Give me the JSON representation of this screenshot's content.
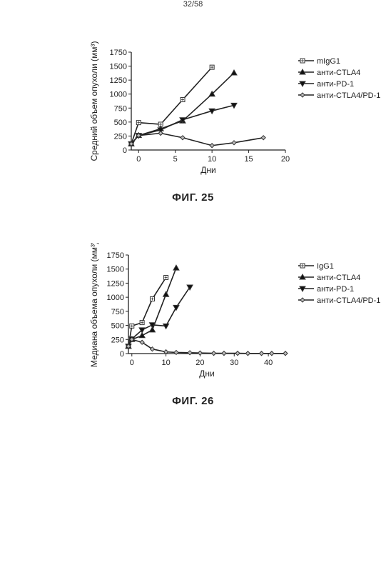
{
  "page": {
    "number": "32/58"
  },
  "chart_data": [
    {
      "type": "line",
      "caption": "ФИГ. 25",
      "xlabel": "Дни",
      "ylabel": "Средний объем опухоли (мм³)",
      "xlim": [
        -1,
        20
      ],
      "ylim": [
        0,
        1750
      ],
      "xticks": [
        0,
        5,
        10,
        15,
        20
      ],
      "yticks": [
        0,
        250,
        500,
        750,
        1000,
        1250,
        1500,
        1750
      ],
      "legend_position": "right",
      "series": [
        {
          "name": "mIgG1",
          "marker": "square",
          "x": [
            -1,
            0,
            3,
            6,
            10
          ],
          "y": [
            110,
            490,
            460,
            900,
            1480
          ]
        },
        {
          "name": "анти-CTLA4",
          "marker": "triangle-up",
          "x": [
            -1,
            0,
            3,
            6,
            10,
            13
          ],
          "y": [
            110,
            260,
            380,
            520,
            1000,
            1380
          ]
        },
        {
          "name": "анти-PD-1",
          "marker": "triangle-down",
          "x": [
            -1,
            0,
            3,
            6,
            10,
            13
          ],
          "y": [
            110,
            260,
            360,
            540,
            700,
            800
          ]
        },
        {
          "name": "анти-CTLA4/PD-1",
          "marker": "diamond",
          "x": [
            -1,
            0,
            3,
            6,
            10,
            13,
            17
          ],
          "y": [
            110,
            260,
            300,
            220,
            80,
            130,
            220
          ]
        }
      ]
    },
    {
      "type": "line",
      "caption": "ФИГ. 26",
      "xlabel": "Дни",
      "ylabel": "Медиана объема опухоли (мм³)",
      "xlim": [
        -1,
        45
      ],
      "ylim": [
        0,
        1750
      ],
      "xticks": [
        0,
        10,
        20,
        30,
        40
      ],
      "yticks": [
        0,
        250,
        500,
        750,
        1000,
        1250,
        1500,
        1750
      ],
      "legend_position": "right",
      "series": [
        {
          "name": "IgG1",
          "marker": "square",
          "x": [
            -1,
            0,
            3,
            6,
            10
          ],
          "y": [
            130,
            490,
            550,
            970,
            1350
          ]
        },
        {
          "name": "анти-CTLA4",
          "marker": "triangle-up",
          "x": [
            -1,
            0,
            3,
            6,
            10,
            13
          ],
          "y": [
            130,
            250,
            320,
            420,
            1050,
            1520
          ]
        },
        {
          "name": "анти-PD-1",
          "marker": "triangle-down",
          "x": [
            -1,
            0,
            3,
            6,
            10,
            13,
            17
          ],
          "y": [
            130,
            260,
            420,
            510,
            490,
            820,
            1180
          ]
        },
        {
          "name": "анти-CTLA4/PD-1",
          "marker": "diamond",
          "x": [
            -1,
            0,
            3,
            6,
            10,
            13,
            17,
            20,
            24,
            27,
            31,
            34,
            38,
            41,
            45
          ],
          "y": [
            130,
            250,
            200,
            80,
            30,
            20,
            15,
            10,
            5,
            5,
            5,
            3,
            3,
            3,
            3
          ]
        }
      ]
    }
  ]
}
